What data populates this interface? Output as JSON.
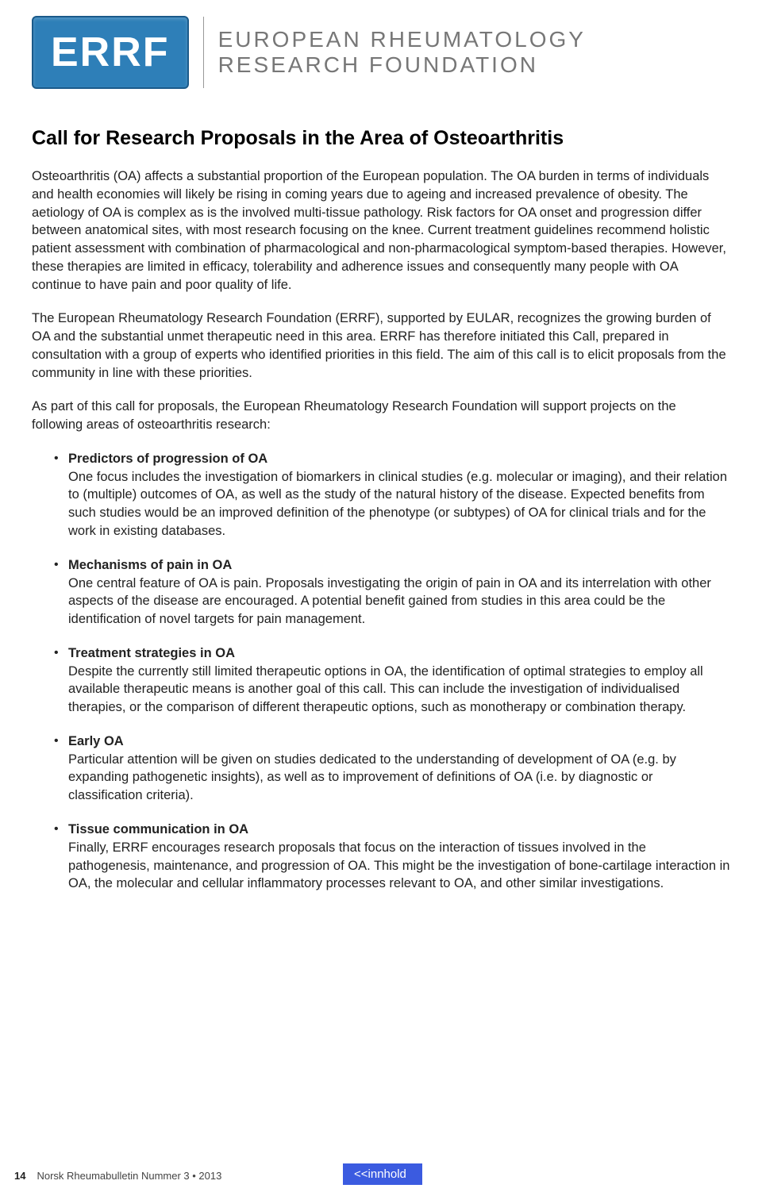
{
  "logo": {
    "abbrev": "ERRF",
    "full_line1": "EUROPEAN RHEUMATOLOGY",
    "full_line2": "RESEARCH FOUNDATION",
    "box_bg": "#2e7fb8",
    "text_color": "#777777"
  },
  "title": "Call for Research Proposals in the Area of Osteoarthritis",
  "paragraphs": {
    "p1": "Osteoarthritis (OA) affects a substantial proportion of the European population. The OA burden in terms of individuals and health economies will likely be rising in coming years due to ageing and increased prevalence of obesity. The aetiology of OA is complex as is the involved multi-tissue pathology. Risk factors for OA onset and progression differ between anatomical sites, with most research focusing on the knee. Current treatment guidelines recommend holistic patient assessment with combination of pharmacological and non-pharmacological symptom-based therapies. However, these therapies are limited in efficacy, tolerability and adherence issues and consequently many people with OA continue to have pain and poor quality of life.",
    "p2": "The European Rheumatology Research Foundation (ERRF), supported by EULAR, recognizes the growing burden of OA and the substantial unmet therapeutic need in this area. ERRF has therefore initiated this Call, prepared in consultation with a group of experts who identified priorities in this field. The aim of this call is to elicit proposals from the community in line with these priorities.",
    "p3": "As part of this call for proposals, the European Rheumatology Research Foundation will support projects on the following areas of osteoarthritis research:"
  },
  "topics": [
    {
      "title": "Predictors of progression of OA",
      "body": "One focus includes the investigation of biomarkers in clinical studies (e.g. molecular or imaging), and their relation to (multiple) outcomes of OA, as well as the study of the natural history of the disease. Expected benefits from such studies would be an improved definition of the phenotype (or subtypes) of OA for clinical trials and for the work in existing databases."
    },
    {
      "title": "Mechanisms of pain in OA",
      "body": "One central feature of OA is pain. Proposals investigating the origin of pain in OA and its interrelation with other aspects of the disease are encouraged. A potential benefit gained from studies in this area could be the identification of novel targets for pain management."
    },
    {
      "title": "Treatment strategies in OA",
      "body": "Despite the currently still limited therapeutic options in OA, the identification of optimal strategies to employ all available therapeutic means is another goal of this call. This can include the investigation of individualised therapies, or the comparison of different therapeutic options, such as monotherapy or combination therapy."
    },
    {
      "title": "Early OA",
      "body": "Particular attention will be given on studies dedicated to the understanding of development of OA (e.g. by expanding pathogenetic insights), as well as to improvement of definitions of OA (i.e. by diagnostic or classification criteria)."
    },
    {
      "title": "Tissue communication in OA",
      "body": "Finally, ERRF encourages research proposals that focus on the interaction of tissues involved in the pathogenesis, maintenance, and progression of OA. This might be the investigation of bone-cartilage interaction in OA, the molecular and cellular inflammatory processes relevant to OA, and other similar investigations."
    }
  ],
  "footer": {
    "page_number": "14",
    "publication": "Norsk Rheumabulletin Nummer 3 • 2013",
    "button_label": "<<innhold",
    "button_bg": "#3b5be0"
  }
}
